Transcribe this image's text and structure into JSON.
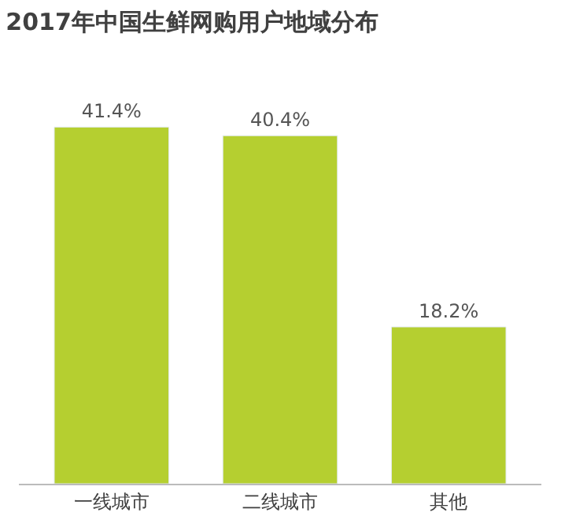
{
  "chart_data": {
    "type": "bar",
    "title": "2017年中国生鲜网购用户地域分布",
    "categories": [
      "一线城市",
      "二线城市",
      "其他"
    ],
    "values": [
      41.4,
      40.4,
      18.2
    ],
    "value_labels": [
      "41.4%",
      "40.4%",
      "18.2%"
    ],
    "color": "#b5cf30"
  }
}
